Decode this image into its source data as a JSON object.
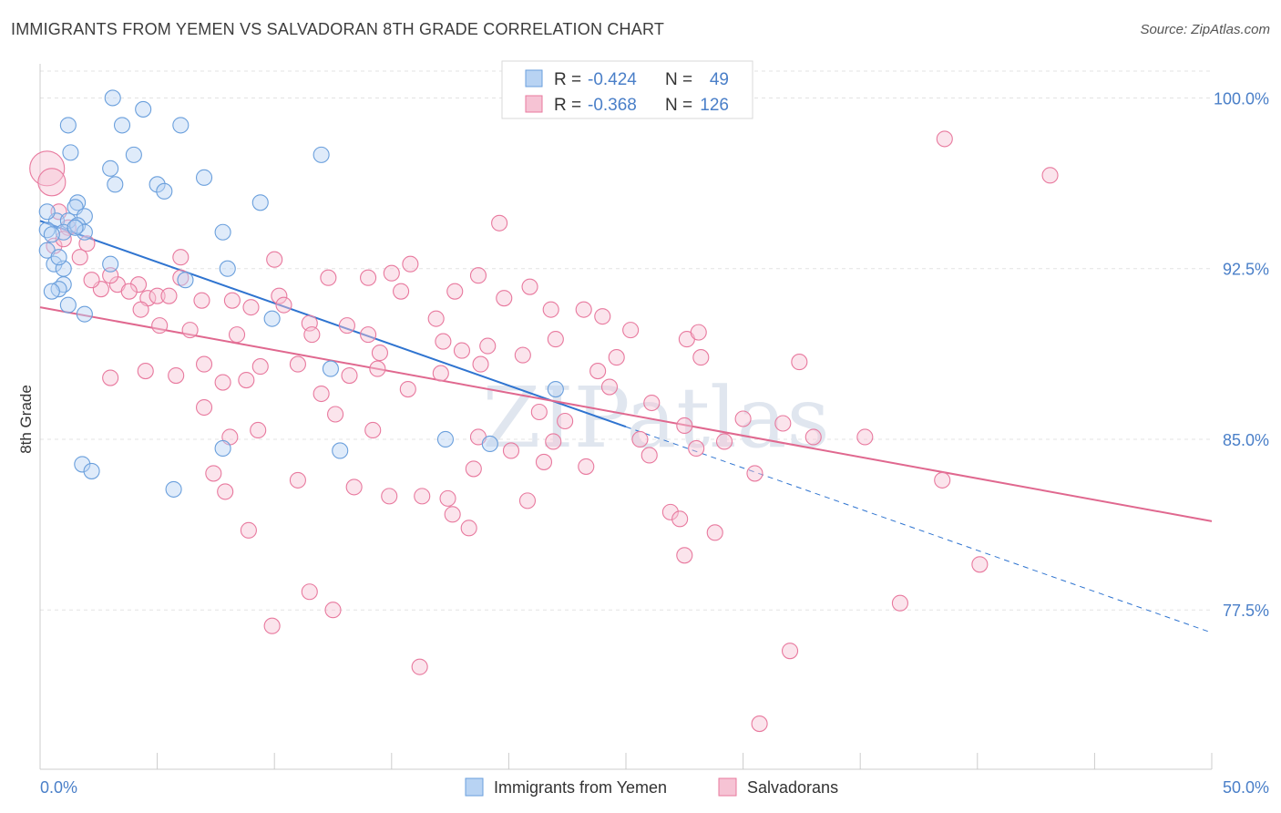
{
  "title": "IMMIGRANTS FROM YEMEN VS SALVADORAN 8TH GRADE CORRELATION CHART",
  "source": "Source: ZipAtlas.com",
  "watermark": "ZIPatlas",
  "colors": {
    "blue": "#6a9fdc",
    "blue_fill": "#b8d3f3",
    "pink": "#e8799e",
    "pink_fill": "#f6c3d4",
    "blue_line": "#2f74d0",
    "pink_line": "#e0688f",
    "tick_label": "#4a7fc8"
  },
  "legend_top": [
    {
      "r_label": "R = ",
      "r_value": "-0.424",
      "n_label": "N = ",
      "n_value": "49",
      "color": "blue"
    },
    {
      "r_label": "R = ",
      "r_value": "-0.368",
      "n_label": "N = ",
      "n_value": "126",
      "color": "pink"
    }
  ],
  "chart_data": {
    "type": "scatter",
    "title": "IMMIGRANTS FROM YEMEN VS SALVADORAN 8TH GRADE CORRELATION CHART",
    "xlabel": "",
    "ylabel": "8th Grade",
    "xlim": [
      0,
      50
    ],
    "ylim": [
      70.5,
      101.5
    ],
    "x_tick_labels": [
      "0.0%",
      "50.0%"
    ],
    "y_ticks": [
      77.5,
      85.0,
      92.5,
      100.0
    ],
    "y_tick_labels": [
      "77.5%",
      "85.0%",
      "92.5%",
      "100.0%"
    ],
    "grid": true,
    "legend_position": "bottom-center",
    "series": [
      {
        "name": "Immigrants from Yemen",
        "color": "blue",
        "trend": {
          "x": [
            0,
            25,
            50
          ],
          "y": [
            94.6,
            85.6,
            76.5
          ],
          "solid_until": 25
        },
        "points": [
          [
            3.1,
            100
          ],
          [
            3.5,
            98.8
          ],
          [
            4.4,
            99.5
          ],
          [
            1.2,
            98.8
          ],
          [
            6.0,
            98.8
          ],
          [
            1.3,
            97.6
          ],
          [
            4.0,
            97.5
          ],
          [
            12.0,
            97.5
          ],
          [
            3.0,
            96.9
          ],
          [
            7.0,
            96.5
          ],
          [
            3.2,
            96.2
          ],
          [
            5.0,
            96.2
          ],
          [
            5.3,
            95.9
          ],
          [
            1.6,
            95.4
          ],
          [
            9.4,
            95.4
          ],
          [
            1.5,
            95.2
          ],
          [
            1.9,
            94.8
          ],
          [
            0.7,
            94.6
          ],
          [
            1.2,
            94.6
          ],
          [
            1.6,
            94.4
          ],
          [
            0.3,
            94.2
          ],
          [
            1.0,
            94.1
          ],
          [
            1.9,
            94.1
          ],
          [
            7.8,
            94.1
          ],
          [
            0.5,
            94.0
          ],
          [
            0.3,
            93.3
          ],
          [
            0.6,
            92.7
          ],
          [
            3.0,
            92.7
          ],
          [
            8.0,
            92.5
          ],
          [
            1.0,
            92.5
          ],
          [
            6.2,
            92.0
          ],
          [
            1.0,
            91.8
          ],
          [
            0.8,
            91.6
          ],
          [
            0.5,
            91.5
          ],
          [
            1.2,
            90.9
          ],
          [
            1.9,
            90.5
          ],
          [
            9.9,
            90.3
          ],
          [
            12.4,
            88.1
          ],
          [
            22.0,
            87.2
          ],
          [
            17.3,
            85.0
          ],
          [
            19.2,
            84.8
          ],
          [
            12.8,
            84.5
          ],
          [
            7.8,
            84.6
          ],
          [
            1.8,
            83.9
          ],
          [
            2.2,
            83.6
          ],
          [
            5.7,
            82.8
          ],
          [
            0.3,
            95.0
          ],
          [
            0.8,
            93.0
          ],
          [
            1.5,
            94.3
          ]
        ]
      },
      {
        "name": "Salvadorans",
        "color": "pink",
        "trend": {
          "x": [
            0,
            50
          ],
          "y": [
            90.8,
            81.4
          ]
        },
        "points": [
          [
            0.3,
            96.9
          ],
          [
            0.5,
            96.3
          ],
          [
            25.0,
            100.2
          ],
          [
            38.6,
            98.2
          ],
          [
            43.1,
            96.6
          ],
          [
            0.8,
            95.0
          ],
          [
            1.2,
            94.3
          ],
          [
            19.6,
            94.5
          ],
          [
            2.0,
            93.6
          ],
          [
            1.7,
            93.0
          ],
          [
            6.0,
            93.0
          ],
          [
            10.0,
            92.9
          ],
          [
            12.3,
            92.1
          ],
          [
            15.0,
            92.3
          ],
          [
            14.0,
            92.1
          ],
          [
            15.8,
            92.7
          ],
          [
            18.7,
            92.2
          ],
          [
            2.6,
            91.6
          ],
          [
            3.3,
            91.8
          ],
          [
            4.2,
            91.8
          ],
          [
            3.0,
            92.2
          ],
          [
            4.6,
            91.2
          ],
          [
            5.0,
            91.3
          ],
          [
            5.5,
            91.3
          ],
          [
            6.9,
            91.1
          ],
          [
            8.2,
            91.1
          ],
          [
            10.2,
            91.3
          ],
          [
            11.5,
            90.1
          ],
          [
            13.1,
            90.0
          ],
          [
            15.4,
            91.5
          ],
          [
            17.7,
            91.5
          ],
          [
            19.8,
            91.2
          ],
          [
            20.9,
            91.7
          ],
          [
            21.8,
            90.7
          ],
          [
            23.2,
            90.7
          ],
          [
            24.0,
            90.4
          ],
          [
            25.2,
            89.8
          ],
          [
            27.6,
            89.4
          ],
          [
            28.2,
            88.6
          ],
          [
            4.3,
            90.7
          ],
          [
            5.1,
            90.0
          ],
          [
            6.4,
            89.8
          ],
          [
            8.4,
            89.6
          ],
          [
            11.6,
            89.6
          ],
          [
            14.0,
            89.6
          ],
          [
            17.2,
            89.3
          ],
          [
            18.0,
            88.9
          ],
          [
            19.1,
            89.1
          ],
          [
            20.6,
            88.7
          ],
          [
            23.8,
            88.0
          ],
          [
            24.3,
            87.3
          ],
          [
            28.1,
            89.7
          ],
          [
            32.4,
            88.4
          ],
          [
            3.0,
            87.7
          ],
          [
            4.5,
            88.0
          ],
          [
            5.8,
            87.8
          ],
          [
            7.0,
            88.3
          ],
          [
            7.8,
            87.5
          ],
          [
            8.8,
            87.6
          ],
          [
            9.4,
            88.2
          ],
          [
            11.0,
            88.3
          ],
          [
            12.0,
            87.0
          ],
          [
            13.2,
            87.8
          ],
          [
            14.4,
            88.1
          ],
          [
            15.7,
            87.2
          ],
          [
            17.1,
            87.9
          ],
          [
            21.3,
            86.2
          ],
          [
            22.4,
            85.8
          ],
          [
            25.6,
            85.0
          ],
          [
            27.5,
            85.6
          ],
          [
            29.2,
            84.9
          ],
          [
            35.2,
            85.1
          ],
          [
            7.0,
            86.4
          ],
          [
            8.1,
            85.1
          ],
          [
            9.3,
            85.4
          ],
          [
            12.6,
            86.1
          ],
          [
            14.2,
            85.4
          ],
          [
            18.7,
            85.1
          ],
          [
            20.1,
            84.5
          ],
          [
            21.9,
            84.9
          ],
          [
            26.0,
            84.3
          ],
          [
            28.0,
            84.6
          ],
          [
            30.5,
            83.5
          ],
          [
            38.5,
            83.2
          ],
          [
            7.4,
            83.5
          ],
          [
            7.9,
            82.7
          ],
          [
            11.0,
            83.2
          ],
          [
            13.4,
            82.9
          ],
          [
            14.9,
            82.5
          ],
          [
            16.3,
            82.5
          ],
          [
            17.4,
            82.4
          ],
          [
            18.5,
            83.7
          ],
          [
            20.8,
            82.3
          ],
          [
            26.9,
            81.8
          ],
          [
            27.3,
            81.5
          ],
          [
            28.8,
            80.9
          ],
          [
            8.9,
            81.0
          ],
          [
            11.5,
            78.3
          ],
          [
            12.5,
            77.5
          ],
          [
            17.6,
            81.7
          ],
          [
            18.3,
            81.1
          ],
          [
            21.5,
            84.0
          ],
          [
            23.3,
            83.8
          ],
          [
            27.5,
            79.9
          ],
          [
            36.7,
            77.8
          ],
          [
            40.1,
            79.5
          ],
          [
            9.9,
            76.8
          ],
          [
            32.0,
            75.7
          ],
          [
            16.2,
            75.0
          ],
          [
            30.7,
            72.5
          ],
          [
            2.2,
            92.0
          ],
          [
            3.8,
            91.5
          ],
          [
            6.0,
            92.1
          ],
          [
            9.0,
            90.8
          ],
          [
            10.4,
            90.9
          ],
          [
            14.5,
            88.8
          ],
          [
            16.9,
            90.3
          ],
          [
            18.8,
            88.3
          ],
          [
            22.0,
            89.4
          ],
          [
            24.6,
            88.6
          ],
          [
            26.1,
            86.6
          ],
          [
            30.0,
            85.9
          ],
          [
            31.7,
            85.7
          ],
          [
            33.0,
            85.1
          ],
          [
            0.6,
            93.5
          ],
          [
            1.0,
            93.8
          ]
        ]
      }
    ]
  }
}
